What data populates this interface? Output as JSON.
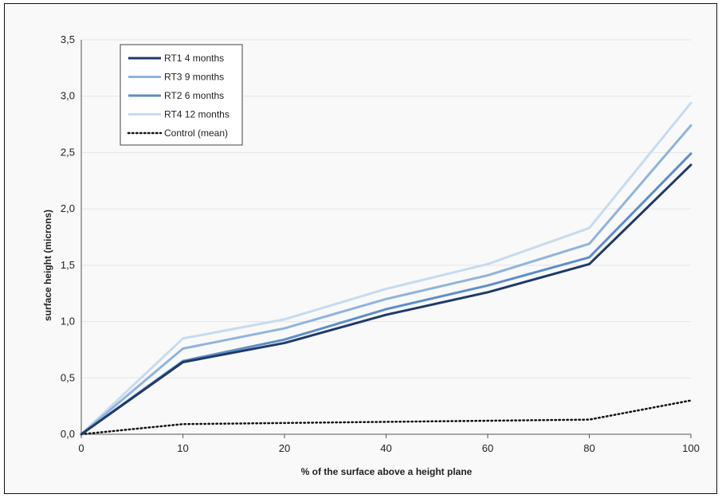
{
  "chart_data": {
    "type": "line",
    "title": "",
    "xlabel": "% of the surface above a height plane",
    "ylabel": "surface height (microns)",
    "categories": [
      "0",
      "10",
      "20",
      "40",
      "60",
      "80",
      "100"
    ],
    "ylim": [
      0,
      3.5
    ],
    "yticks": [
      "0,0",
      "0,5",
      "1,0",
      "1,5",
      "2,0",
      "2,5",
      "3,0",
      "3,5"
    ],
    "grid": "horizontal",
    "legend_position": "top-left",
    "series": [
      {
        "name": "RT1 4 months",
        "color": "#1f3a68",
        "dash": "solid",
        "values": [
          0,
          0.64,
          0.81,
          1.06,
          1.26,
          1.51,
          2.39
        ]
      },
      {
        "name": "RT3 9 months",
        "color": "#8fb4dc",
        "dash": "solid",
        "values": [
          0,
          0.76,
          0.94,
          1.2,
          1.41,
          1.69,
          2.74
        ]
      },
      {
        "name": "RT2 6 months",
        "color": "#5e8ec6",
        "dash": "solid",
        "values": [
          0,
          0.65,
          0.84,
          1.11,
          1.32,
          1.57,
          2.49
        ]
      },
      {
        "name": "RT4 12 months",
        "color": "#c6dbef",
        "dash": "solid",
        "values": [
          0,
          0.85,
          1.02,
          1.29,
          1.51,
          1.83,
          2.94
        ]
      },
      {
        "name": "Control (mean)",
        "color": "#111111",
        "dash": "dotted",
        "values": [
          0,
          0.09,
          0.1,
          0.11,
          0.12,
          0.13,
          0.3
        ]
      }
    ]
  }
}
